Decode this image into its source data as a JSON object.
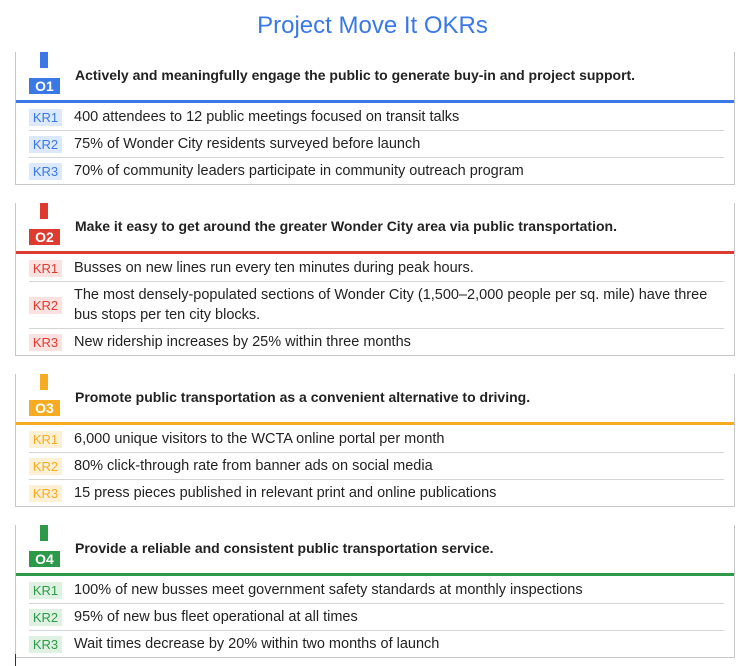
{
  "title": "Project Move It OKRs",
  "objectives": [
    {
      "code": "O1",
      "color": "#3a78e6",
      "badge_bg": "#dce8fb",
      "title": "Actively and meaningfully engage the public to generate buy-in and project support.",
      "key_results": [
        {
          "code": "KR1",
          "text": "400 attendees to 12 public meetings focused on transit talks"
        },
        {
          "code": "KR2",
          "text": "75% of Wonder City residents surveyed before launch"
        },
        {
          "code": "KR3",
          "text": "70% of community leaders participate in community outreach program"
        }
      ]
    },
    {
      "code": "O2",
      "color": "#dd3b30",
      "badge_bg": "#fbe1df",
      "title": "Make it easy to get around the greater Wonder City area via public transportation.",
      "key_results": [
        {
          "code": "KR1",
          "text": "Busses on new lines run every ten minutes during peak hours."
        },
        {
          "code": "KR2",
          "text": "The most densely-populated sections of Wonder City (1,500–2,000 people per sq. mile) have three bus stops per ten city blocks."
        },
        {
          "code": "KR3",
          "text": "New ridership increases by 25% within three months"
        }
      ]
    },
    {
      "code": "O3",
      "color": "#f5ac23",
      "badge_bg": "#fdf0d5",
      "title": "Promote public transportation as a convenient alternative to driving.",
      "key_results": [
        {
          "code": "KR1",
          "text": "6,000 unique visitors to the WCTA online portal per month"
        },
        {
          "code": "KR2",
          "text": "80% click-through rate from banner ads on social media"
        },
        {
          "code": "KR3",
          "text": "15 press pieces published in relevant print and online publications"
        }
      ]
    },
    {
      "code": "O4",
      "color": "#2c9a48",
      "badge_bg": "#def1e3",
      "title": "Provide a reliable and consistent public transportation service.",
      "key_results": [
        {
          "code": "KR1",
          "text": "100% of new busses meet government safety standards at monthly inspections"
        },
        {
          "code": "KR2",
          "text": "95% of new bus fleet operational at all times"
        },
        {
          "code": "KR3",
          "text": "Wait times decrease by 20% within two months of launch"
        }
      ]
    }
  ]
}
